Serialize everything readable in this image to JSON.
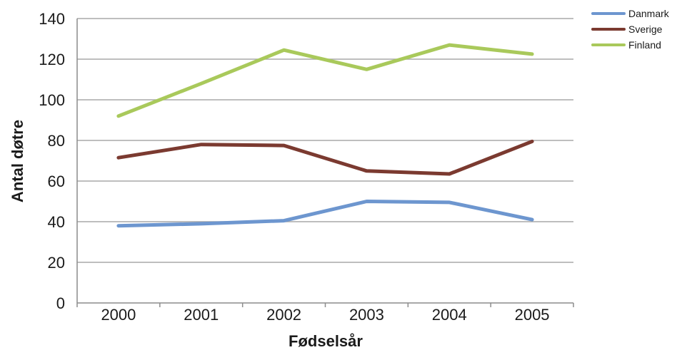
{
  "chart_data": {
    "type": "line",
    "categories": [
      "2000",
      "2001",
      "2002",
      "2003",
      "2004",
      "2005"
    ],
    "series": [
      {
        "name": "Danmark",
        "color": "#6d96cf",
        "values": [
          38,
          39,
          40.5,
          50,
          49.5,
          41
        ]
      },
      {
        "name": "Sverige",
        "color": "#7b3a30",
        "values": [
          71.5,
          78,
          77.5,
          65,
          63.5,
          79.5
        ]
      },
      {
        "name": "Finland",
        "color": "#a9c95b",
        "values": [
          92,
          108,
          124.5,
          115,
          127,
          122.5
        ]
      }
    ],
    "title": "",
    "xlabel": "Fødselsår",
    "ylabel": "Antal døtre",
    "ylim": [
      0,
      140
    ],
    "yticks": [
      "0",
      "20",
      "40",
      "60",
      "80",
      "100",
      "120",
      "140"
    ],
    "grid": true,
    "legend_position": "top-right"
  }
}
